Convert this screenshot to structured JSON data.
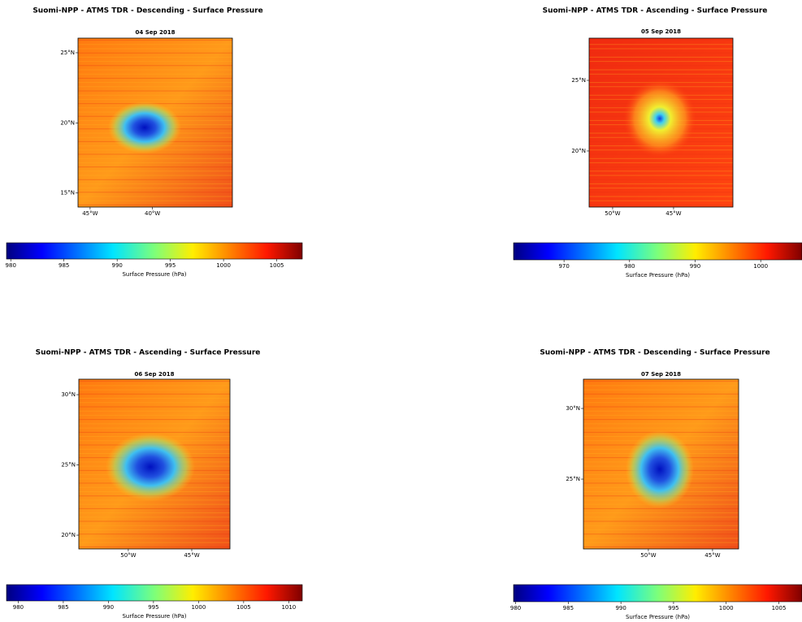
{
  "panels": [
    {
      "title": "Suomi-NPP - ATMS TDR - Descending - Surface Pressure",
      "date": "04 Sep 2018",
      "xlim": [
        -45.97,
        -33.6
      ],
      "ylim": [
        14.0,
        26.04
      ],
      "xticks": [
        {
          "value": -45,
          "label": "45°W"
        },
        {
          "value": -40,
          "label": "40°W"
        }
      ],
      "yticks": [
        {
          "value": 15,
          "label": "15°N"
        },
        {
          "value": 20,
          "label": "20°N"
        },
        {
          "value": 25,
          "label": "25°N"
        }
      ],
      "colorbar": {
        "label": "Surface Pressure (hPa)",
        "lim": [
          979.6,
          1007.4
        ],
        "ticks": [
          980,
          985,
          990,
          995,
          1000,
          1005
        ]
      }
    },
    {
      "title": "Suomi-NPP - ATMS TDR - Ascending - Surface Pressure",
      "date": "05 Sep 2018",
      "xlim": [
        -51.93,
        -40.13
      ],
      "ylim": [
        16.03,
        27.99
      ],
      "xticks": [
        {
          "value": -50,
          "label": "50°W"
        },
        {
          "value": -45,
          "label": "45°W"
        }
      ],
      "yticks": [
        {
          "value": 20,
          "label": "20°N"
        },
        {
          "value": 25,
          "label": "25°N"
        }
      ],
      "colorbar": {
        "label": "Surface Pressure (hPa)",
        "lim": [
          962.3,
          1006.3
        ],
        "ticks": [
          970,
          980,
          990,
          1000
        ]
      }
    },
    {
      "title": "Suomi-NPP - ATMS TDR - Ascending - Surface Pressure",
      "date": "06 Sep 2018",
      "xlim": [
        -53.9,
        -41.99
      ],
      "ylim": [
        19.02,
        31.1
      ],
      "xticks": [
        {
          "value": -50,
          "label": "50°W"
        },
        {
          "value": -45,
          "label": "45°W"
        }
      ],
      "yticks": [
        {
          "value": 20,
          "label": "20°N"
        },
        {
          "value": 25,
          "label": "25°N"
        },
        {
          "value": 30,
          "label": "30°N"
        }
      ],
      "colorbar": {
        "label": "Surface Pressure (hPa)",
        "lim": [
          978.7,
          1011.5
        ],
        "ticks": [
          980,
          985,
          990,
          995,
          1000,
          1005,
          1010
        ]
      }
    },
    {
      "title": "Suomi-NPP - ATMS TDR - Descending - Surface Pressure",
      "date": "07 Sep 2018",
      "xlim": [
        -55.06,
        -42.97
      ],
      "ylim": [
        20.06,
        32.07
      ],
      "xticks": [
        {
          "value": -50,
          "label": "50°W"
        },
        {
          "value": -45,
          "label": "45°W"
        }
      ],
      "yticks": [
        {
          "value": 25,
          "label": "25°N"
        },
        {
          "value": 30,
          "label": "30°N"
        }
      ],
      "colorbar": {
        "label": "Surface Pressure (hPa)",
        "lim": [
          979.8,
          1007.2
        ],
        "ticks": [
          980,
          985,
          990,
          995,
          1000,
          1005
        ]
      }
    }
  ]
}
